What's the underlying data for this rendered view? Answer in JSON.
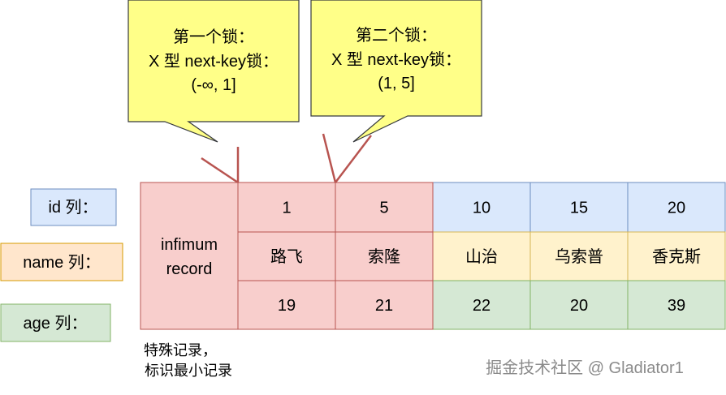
{
  "callouts": [
    {
      "line1": "第一个锁：",
      "line2": "X 型 next-key锁：",
      "line3": "(-∞, 1]"
    },
    {
      "line1": "第二个锁：",
      "line2": "X 型 next-key锁：",
      "line3": "(1, 5]"
    }
  ],
  "row_labels": {
    "id": "id 列：",
    "name": "name 列：",
    "age": "age 列："
  },
  "infimum": {
    "line1": "infimum",
    "line2": "record"
  },
  "records": [
    {
      "id": "1",
      "name": "路飞",
      "age": "19",
      "locked": true
    },
    {
      "id": "5",
      "name": "索隆",
      "age": "21",
      "locked": true
    },
    {
      "id": "10",
      "name": "山治",
      "age": "22",
      "locked": false
    },
    {
      "id": "15",
      "name": "乌索普",
      "age": "20",
      "locked": false
    },
    {
      "id": "20",
      "name": "香克斯",
      "age": "39",
      "locked": false
    }
  ],
  "note": {
    "line1": "特殊记录，",
    "line2": "标识最小记录"
  },
  "watermark": "掘金技术社区 @ Gladiator1",
  "colors": {
    "callout_fill": "#ffff88",
    "locked_fill": "#f8cecc",
    "locked_stroke": "#b85450",
    "id_fill": "#dae8fc",
    "id_stroke": "#6c8ebf",
    "name_fill": "#fff2cc",
    "name_stroke": "#d6b656",
    "age_fill": "#d5e8d4",
    "age_stroke": "#82b366",
    "name_label_fill": "#ffe6cc",
    "name_label_stroke": "#d79b00"
  }
}
